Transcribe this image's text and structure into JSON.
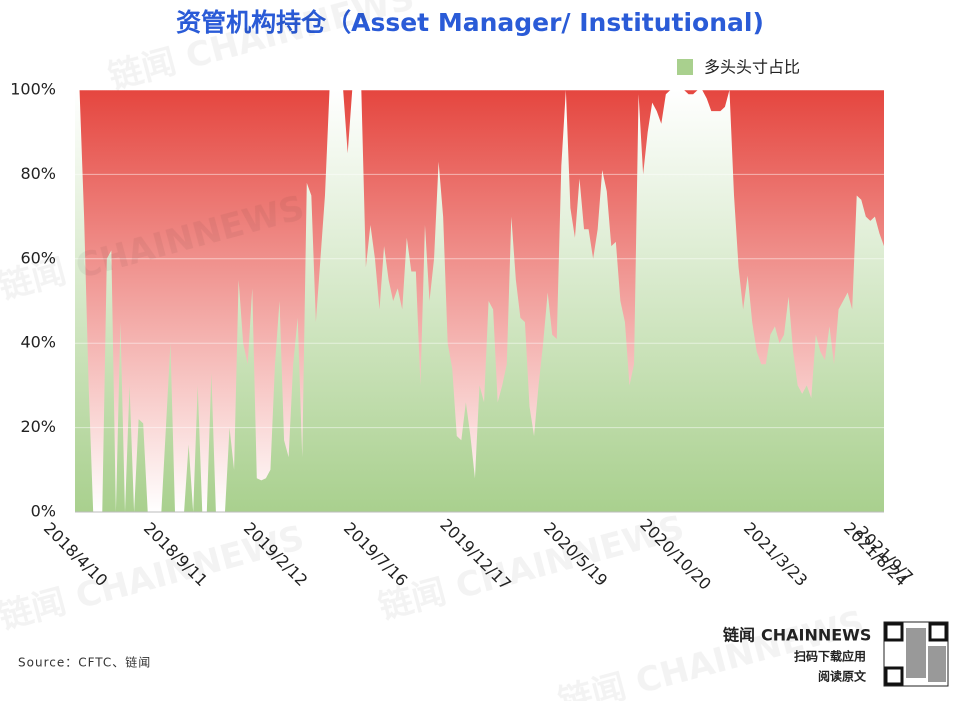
{
  "chart_data": {
    "type": "area",
    "title": "资管机构持仓（Asset Manager/ Institutional)",
    "source": "Source：CFTC、链闻",
    "watermark": "链闻 CHAINNEWS",
    "footer": {
      "brand_cn": "链闻",
      "brand_en": "CHAINNEWS",
      "line1": "扫码下载应用",
      "line2": "阅读原文"
    },
    "categories": [
      "2018/4/10",
      null,
      null,
      null,
      null,
      null,
      null,
      null,
      null,
      null,
      null,
      null,
      null,
      null,
      null,
      null,
      null,
      null,
      null,
      null,
      null,
      null,
      "2018/9/11",
      null,
      null,
      null,
      null,
      null,
      null,
      null,
      null,
      null,
      null,
      null,
      null,
      null,
      null,
      null,
      null,
      null,
      null,
      null,
      null,
      null,
      "2019/2/12",
      null,
      null,
      null,
      null,
      null,
      null,
      null,
      null,
      null,
      null,
      null,
      null,
      null,
      null,
      null,
      null,
      null,
      null,
      null,
      null,
      null,
      "2019/7/16",
      null,
      null,
      null,
      null,
      null,
      null,
      null,
      null,
      null,
      null,
      null,
      null,
      null,
      null,
      null,
      null,
      null,
      null,
      null,
      null,
      null,
      "2019/12/17",
      null,
      null,
      null,
      null,
      null,
      null,
      null,
      null,
      null,
      null,
      null,
      null,
      null,
      null,
      null,
      null,
      null,
      null,
      null,
      null,
      null,
      "2020/5/19",
      null,
      null,
      null,
      null,
      null,
      null,
      null,
      null,
      null,
      null,
      null,
      null,
      null,
      null,
      null,
      null,
      null,
      null,
      null,
      null,
      null,
      "2020/10/20",
      null,
      null,
      null,
      null,
      null,
      null,
      null,
      null,
      null,
      null,
      null,
      null,
      null,
      null,
      null,
      null,
      null,
      null,
      null,
      null,
      null,
      "2021/3/23",
      null,
      null,
      null,
      null,
      null,
      null,
      null,
      null,
      null,
      null,
      null,
      null,
      null,
      null,
      null,
      null,
      null,
      null,
      null,
      null,
      null,
      "2021/8/24",
      null,
      "2021/9/7"
    ],
    "series": [
      {
        "name": "多头头寸占比",
        "color": "#a9d08e",
        "values": [
          100,
          100,
          70,
          30,
          0,
          0,
          0,
          60,
          62,
          0,
          45,
          0,
          30,
          0,
          22,
          21,
          0,
          0,
          0,
          0,
          20,
          40,
          0,
          0,
          0,
          16,
          0,
          30,
          0,
          0,
          33,
          0,
          0,
          0,
          20,
          10,
          55,
          40,
          35,
          53,
          8,
          7.5,
          8,
          10,
          35,
          50,
          17,
          13,
          35,
          46,
          13,
          78,
          75,
          45,
          60,
          75,
          100,
          100,
          100,
          100,
          85,
          100,
          100,
          100,
          58,
          68,
          60,
          48,
          63,
          55,
          50,
          53,
          48,
          65,
          57,
          57,
          30,
          68,
          50,
          60,
          83,
          70,
          40,
          34,
          18,
          17,
          26,
          18,
          8,
          30,
          26,
          50,
          48,
          26,
          30,
          35,
          70,
          55,
          46,
          45,
          25,
          18,
          30,
          40,
          52,
          42,
          41,
          82,
          100,
          72,
          65,
          79,
          67,
          67,
          60,
          67,
          81,
          76,
          63,
          64,
          50,
          45,
          30,
          35,
          99,
          80,
          90,
          97,
          95,
          92,
          99,
          100,
          100,
          100,
          100,
          99,
          99,
          100,
          100,
          98,
          95,
          95,
          95,
          96,
          100,
          75,
          58,
          48,
          56,
          45,
          38,
          35,
          35,
          42,
          44,
          40,
          42,
          51,
          38,
          30,
          28,
          30,
          27,
          42,
          38,
          36,
          44,
          35,
          48,
          50,
          52,
          48,
          75,
          74,
          70,
          69,
          70,
          66,
          63
        ]
      }
    ],
    "ylim": [
      0,
      100
    ],
    "yticks": [
      {
        "value": 0,
        "label": "0%"
      },
      {
        "value": 20,
        "label": "20%"
      },
      {
        "value": 40,
        "label": "40%"
      },
      {
        "value": 60,
        "label": "60%"
      },
      {
        "value": 80,
        "label": "80%"
      },
      {
        "value": 100,
        "label": "100%"
      }
    ],
    "remainder_color": "#e5463f",
    "grid": true
  }
}
